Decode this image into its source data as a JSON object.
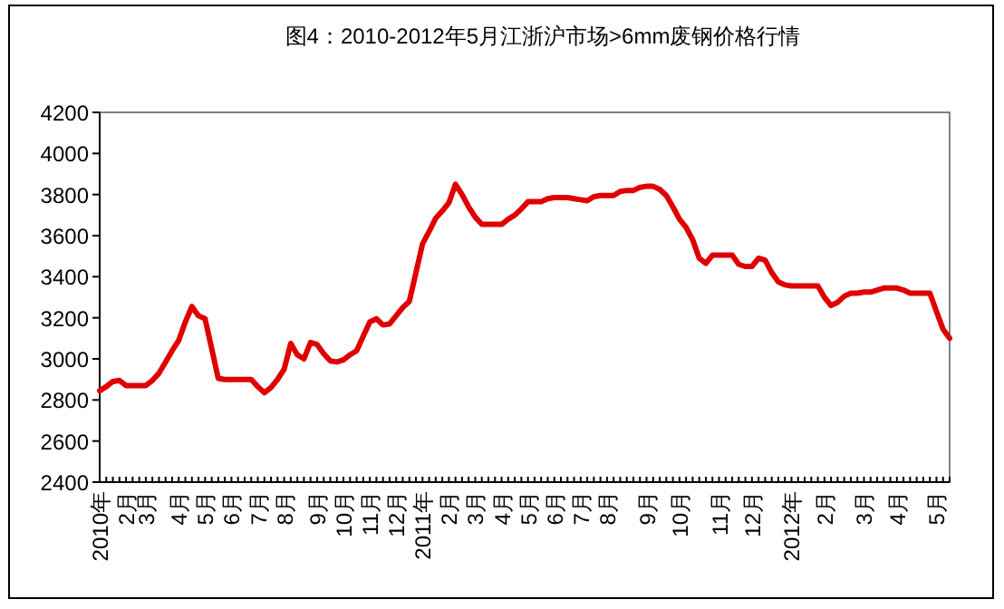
{
  "chart_data": {
    "type": "line",
    "title": "图4：2010-2012年5月江浙沪市场>6mm废钢价格行情",
    "categories": [
      "2010年",
      null,
      null,
      null,
      "2月",
      null,
      null,
      "3月",
      null,
      null,
      null,
      null,
      "4月",
      null,
      null,
      null,
      "5月",
      null,
      null,
      null,
      "6月",
      null,
      null,
      null,
      "7月",
      null,
      null,
      null,
      "8月",
      null,
      null,
      null,
      null,
      "9月",
      null,
      null,
      null,
      "10月",
      null,
      null,
      null,
      "11月",
      null,
      null,
      null,
      "12月",
      null,
      null,
      null,
      "2011年",
      null,
      null,
      null,
      "2月",
      null,
      null,
      null,
      "3月",
      null,
      null,
      null,
      "4月",
      null,
      null,
      null,
      "5月",
      null,
      null,
      null,
      "6月",
      null,
      null,
      null,
      "7月",
      null,
      null,
      null,
      "8月",
      null,
      null,
      null,
      null,
      null,
      "9月",
      null,
      null,
      null,
      null,
      "10月",
      null,
      null,
      null,
      null,
      null,
      "11月",
      null,
      null,
      null,
      null,
      "12月",
      null,
      null,
      null,
      null,
      null,
      "2012年",
      null,
      null,
      null,
      null,
      "2月",
      null,
      null,
      null,
      null,
      null,
      "3月",
      null,
      null,
      null,
      null,
      "4月",
      null,
      null,
      null,
      null,
      null,
      "5月",
      null,
      null
    ],
    "values": [
      2845,
      2865,
      2890,
      2895,
      2870,
      2870,
      2870,
      2870,
      2895,
      2930,
      2985,
      3040,
      3090,
      3180,
      3255,
      3210,
      3195,
      3050,
      2905,
      2900,
      2900,
      2900,
      2900,
      2900,
      2865,
      2835,
      2860,
      2900,
      2950,
      3075,
      3020,
      3000,
      3080,
      3070,
      3025,
      2990,
      2985,
      2995,
      3020,
      3040,
      3110,
      3180,
      3195,
      3165,
      3170,
      3210,
      3250,
      3280,
      3420,
      3560,
      3620,
      3685,
      3720,
      3760,
      3850,
      3800,
      3740,
      3690,
      3655,
      3655,
      3655,
      3655,
      3680,
      3700,
      3730,
      3765,
      3765,
      3765,
      3780,
      3785,
      3785,
      3785,
      3780,
      3775,
      3770,
      3790,
      3795,
      3795,
      3795,
      3815,
      3820,
      3820,
      3835,
      3840,
      3840,
      3825,
      3795,
      3740,
      3680,
      3640,
      3580,
      3490,
      3465,
      3505,
      3505,
      3505,
      3505,
      3460,
      3450,
      3450,
      3490,
      3480,
      3420,
      3375,
      3360,
      3355,
      3355,
      3355,
      3355,
      3355,
      3300,
      3260,
      3275,
      3305,
      3320,
      3320,
      3325,
      3325,
      3335,
      3345,
      3345,
      3345,
      3335,
      3320,
      3320,
      3320,
      3320,
      3230,
      3145,
      3100
    ],
    "color": "#e00000",
    "ylim": [
      2400,
      4200
    ],
    "yticks": [
      2400,
      2600,
      2800,
      3000,
      3200,
      3400,
      3600,
      3800,
      4000,
      4200
    ]
  }
}
